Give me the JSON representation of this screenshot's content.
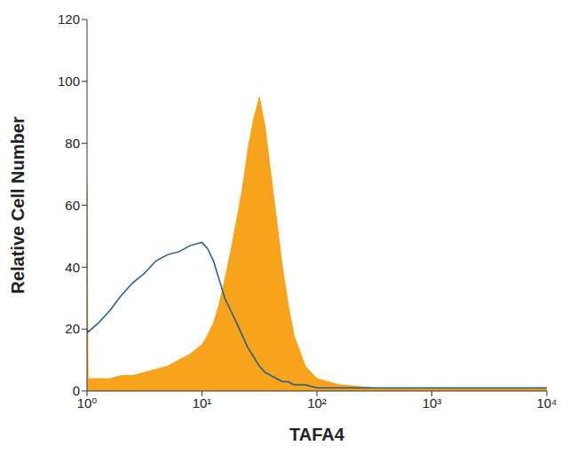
{
  "chart_data": {
    "type": "area",
    "x_label": "TAFA4",
    "y_label": "Relative Cell Number",
    "log": "x",
    "grid": false,
    "xlim": [
      1,
      10000
    ],
    "xticks": [
      {
        "value": 1,
        "label": "10⁰"
      },
      {
        "value": 10,
        "label": "10¹"
      },
      {
        "value": 100,
        "label": "10²"
      },
      {
        "value": 1000,
        "label": "10³"
      },
      {
        "value": 10000,
        "label": "10⁴"
      }
    ],
    "ylim": [
      0,
      120
    ],
    "yticks": [
      0,
      20,
      40,
      60,
      80,
      100,
      120
    ],
    "x": [
      1,
      1.02,
      1.26,
      1.58,
      2.0,
      2.51,
      3.16,
      3.98,
      5.01,
      6.31,
      7.94,
      10,
      11.2,
      12.6,
      14.1,
      15.8,
      17.8,
      20.0,
      22.4,
      25.1,
      28.2,
      31.6,
      35.5,
      39.8,
      44.7,
      50.1,
      56.2,
      63.1,
      79.4,
      100,
      158,
      316,
      1000,
      3162,
      10000
    ],
    "series": [
      {
        "type": "area",
        "color": "#f7a31c",
        "values": [
          67,
          4,
          4,
          4,
          5,
          5,
          6,
          7,
          8,
          10,
          12,
          15,
          18,
          22,
          28,
          36,
          45,
          55,
          65,
          78,
          88,
          95,
          85,
          70,
          55,
          40,
          28,
          18,
          8,
          4,
          2,
          1,
          1,
          1,
          1
        ]
      },
      {
        "type": "line",
        "color": "#1d5b8f",
        "values": [
          20,
          19,
          22,
          26,
          31,
          35,
          38,
          42,
          44,
          45,
          47,
          48,
          46,
          42,
          36,
          30,
          26,
          22,
          18,
          14,
          11,
          8,
          6,
          5,
          4,
          3,
          3,
          2,
          2,
          1,
          1,
          1,
          1,
          1,
          1
        ]
      }
    ]
  }
}
